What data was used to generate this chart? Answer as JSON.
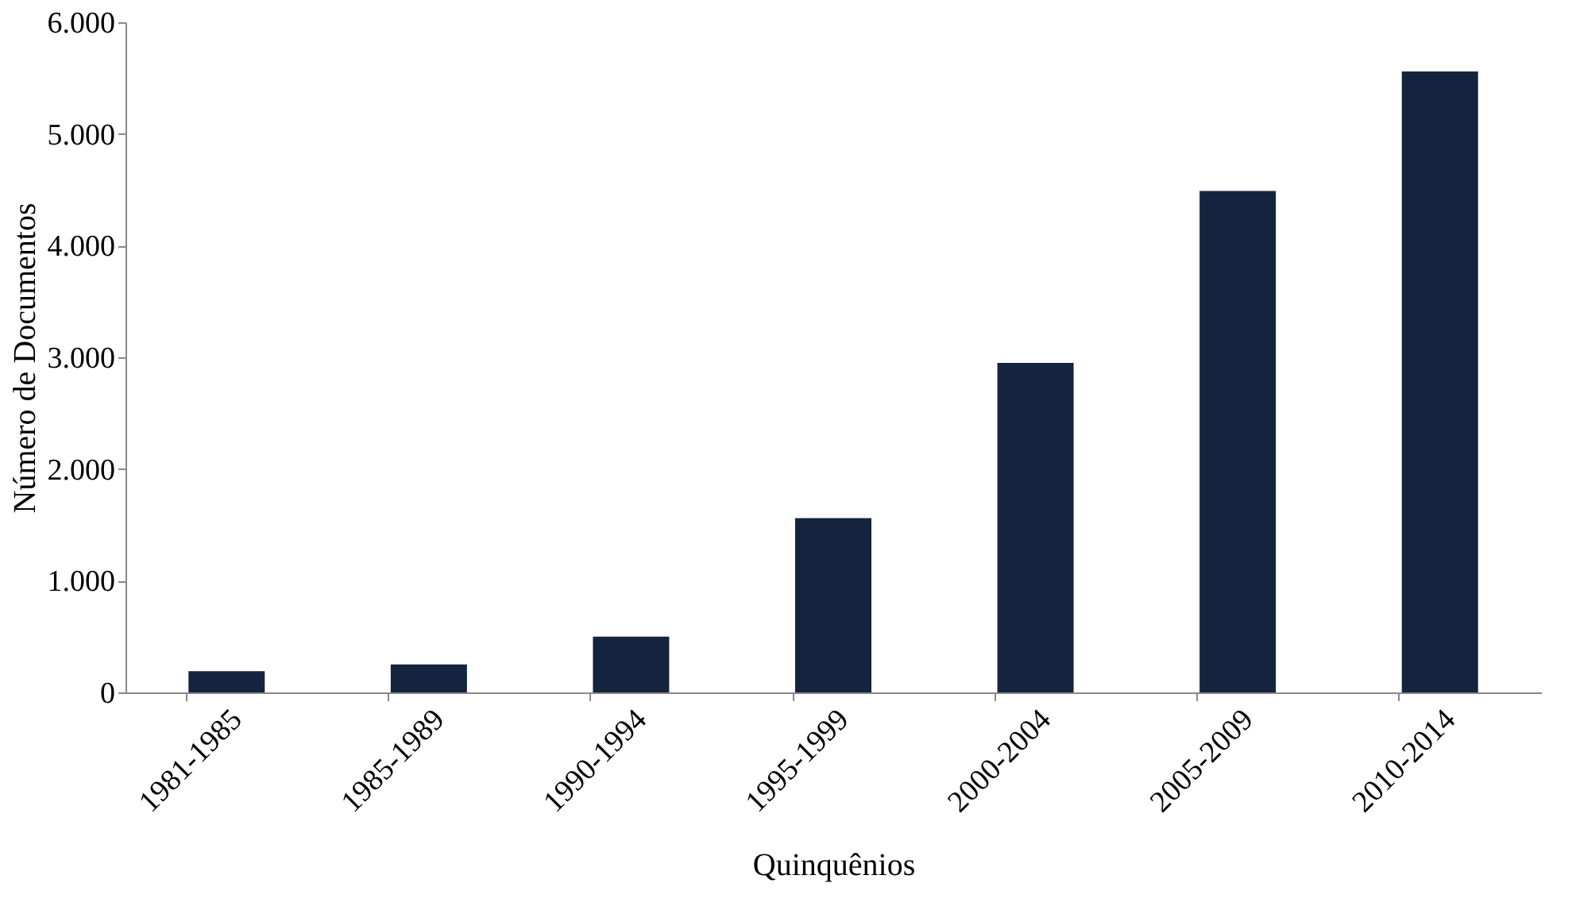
{
  "chart_data": {
    "type": "bar",
    "xlabel": "Quinquênios",
    "ylabel": "Número de Documentos",
    "categories": [
      "1981-1985",
      "1985-1989",
      "1990-1994",
      "1995-1999",
      "2000-2004",
      "2005-2009",
      "2010-2014"
    ],
    "series": [
      {
        "color": "#14243f",
        "values": [
          190,
          250,
          500,
          1560,
          2950,
          4490,
          5560
        ]
      }
    ],
    "ylim": [
      0,
      6000
    ],
    "yticks": [
      0,
      {
        "value": 1000,
        "label": "1.000"
      },
      {
        "value": 2000,
        "label": "2.000"
      },
      {
        "value": 3000,
        "label": "3.000"
      },
      {
        "value": 4000,
        "label": "4.000"
      },
      {
        "value": 5000,
        "label": "5.000"
      },
      {
        "value": 6000,
        "label": "6.000"
      }
    ],
    "grid": false
  }
}
